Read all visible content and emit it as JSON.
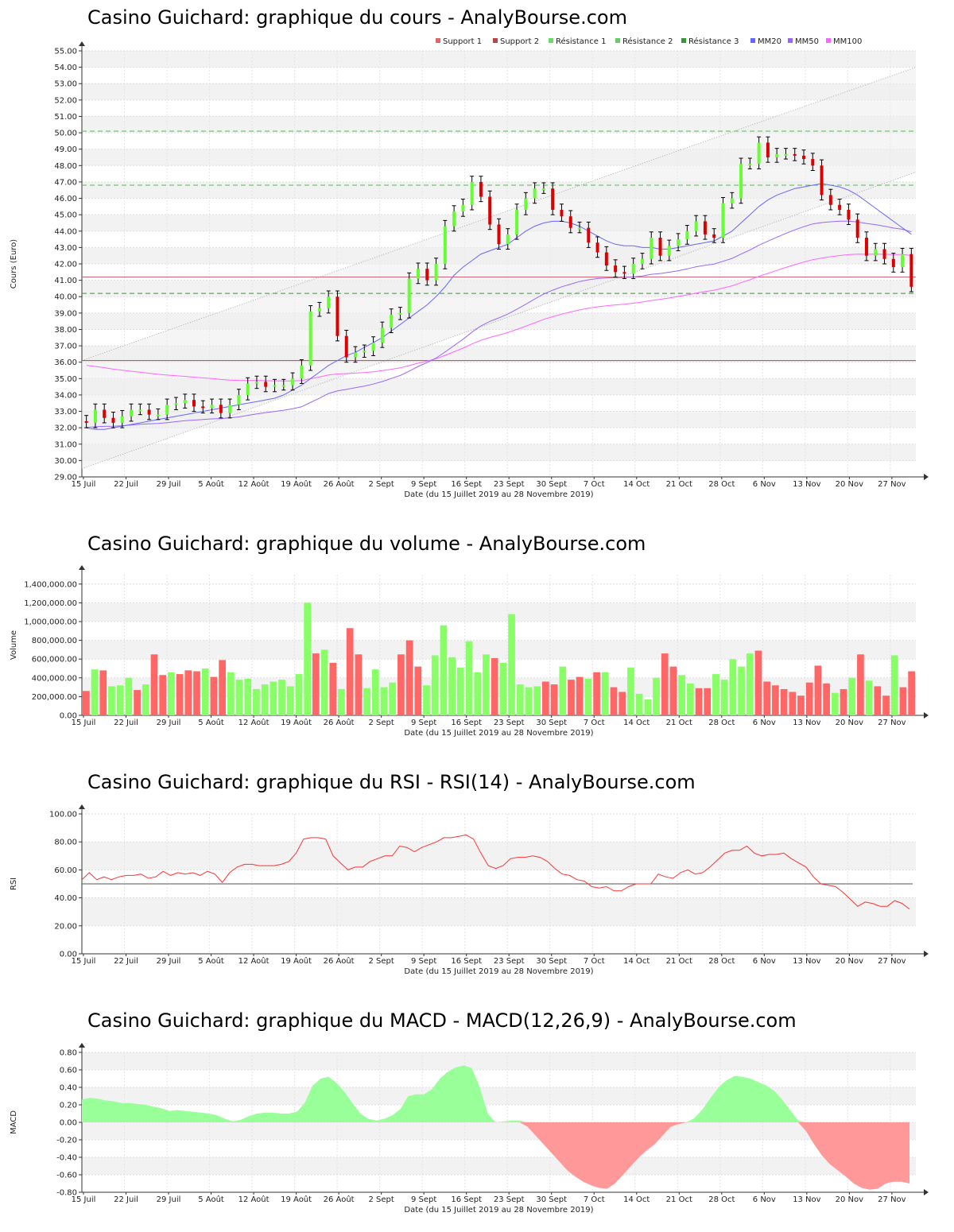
{
  "colors": {
    "up": "#66ff33",
    "down": "#dd0000",
    "vol_up": "#88ff66",
    "vol_down": "#ff6666",
    "mm20": "#6666ff",
    "mm50": "#9966ff",
    "mm100": "#ff66ff",
    "support1": "#dd6666",
    "support2": "#bb4444",
    "resistance1": "#66dd66",
    "resistance2": "#66cc66",
    "resistance3": "#339933",
    "rsi": "#ff3333",
    "macd_pos": "#99ff99",
    "macd_neg": "#ff9999"
  },
  "x_ticks": [
    "15 Juil",
    "22 Juil",
    "29 Juil",
    "5 Août",
    "12 Août",
    "19 Août",
    "26 Août",
    "2 Sept",
    "9 Sept",
    "16 Sept",
    "23 Sept",
    "30 Sept",
    "7 Oct",
    "14 Oct",
    "21 Oct",
    "28 Oct",
    "6 Nov",
    "13 Nov",
    "20 Nov",
    "27 Nov"
  ],
  "xlabel": "Date (du 15 Juillet 2019 au 28 Novembre 2019)",
  "price_panel": {
    "title": "Casino Guichard: graphique du cours - AnalyBourse.com",
    "ylabel": "Cours (Euro)",
    "legend": [
      "Support 1",
      "Support 2",
      "Résistance 1",
      "Résistance 2",
      "Résistance 3",
      "MM20",
      "MM50",
      "MM100"
    ]
  },
  "volume_panel": {
    "title": "Casino Guichard: graphique du volume - AnalyBourse.com",
    "ylabel": "Volume"
  },
  "rsi_panel": {
    "title": "Casino Guichard: graphique du RSI - RSI(14) - AnalyBourse.com",
    "ylabel": "RSI"
  },
  "macd_panel": {
    "title": "Casino Guichard: graphique du MACD - MACD(12,26,9) - AnalyBourse.com",
    "ylabel": "MACD"
  },
  "chart_data": [
    {
      "type": "candlestick",
      "title": "Casino Guichard: graphique du cours - AnalyBourse.com",
      "xlabel": "Date (du 15 Juillet 2019 au 28 Novembre 2019)",
      "ylabel": "Cours (Euro)",
      "ylim": [
        29,
        55
      ],
      "yticks": [
        "29.00",
        "30.00",
        "31.00",
        "32.00",
        "33.00",
        "34.00",
        "35.00",
        "36.00",
        "37.00",
        "38.00",
        "39.00",
        "40.00",
        "41.00",
        "42.00",
        "43.00",
        "44.00",
        "45.00",
        "46.00",
        "47.00",
        "48.00",
        "49.00",
        "50.00",
        "51.00",
        "52.00",
        "53.00",
        "54.00",
        "55.00"
      ],
      "levels": {
        "support1": 41.2,
        "support2": 36.1,
        "resistance1": 50.1,
        "resistance2": 46.8,
        "resistance3": 40.2
      },
      "closes": [
        32.3,
        33.1,
        32.6,
        32.3,
        32.7,
        33.1,
        33.1,
        32.8,
        32.8,
        33.4,
        33.5,
        33.7,
        33.3,
        33.2,
        33.4,
        32.9,
        33.4,
        34.0,
        34.7,
        34.8,
        34.5,
        34.6,
        34.6,
        35.0,
        35.8,
        39.1,
        39.3,
        40.0,
        37.6,
        36.3,
        36.6,
        36.7,
        37.2,
        38.1,
        38.9,
        39.0,
        41.1,
        41.7,
        41.0,
        42.0,
        44.3,
        45.2,
        45.6,
        47.0,
        46.1,
        44.4,
        43.2,
        43.8,
        45.3,
        46.0,
        46.6,
        46.6,
        45.3,
        44.9,
        44.2,
        44.2,
        43.3,
        42.7,
        41.9,
        41.5,
        41.4,
        42.0,
        42.3,
        43.6,
        42.5,
        43.1,
        43.5,
        44.0,
        44.6,
        43.8,
        43.6,
        45.7,
        46.0,
        48.1,
        48.1,
        49.4,
        48.5,
        48.7,
        48.7,
        48.6,
        48.4,
        48.0,
        46.2,
        45.6,
        45.3,
        44.7,
        43.6,
        42.5,
        42.9,
        42.3,
        41.8,
        42.6,
        40.6
      ],
      "mm20": [
        32.0,
        31.9,
        31.9,
        32.0,
        32.1,
        32.2,
        32.3,
        32.4,
        32.5,
        32.6,
        32.7,
        32.8,
        32.9,
        33.0,
        33.1,
        33.2,
        33.3,
        33.4,
        33.5,
        33.6,
        33.7,
        33.8,
        34.0,
        34.3,
        34.6,
        35.0,
        35.4,
        35.8,
        36.1,
        36.4,
        36.6,
        36.9,
        37.2,
        37.5,
        37.9,
        38.3,
        38.7,
        39.1,
        39.5,
        40.0,
        40.6,
        41.3,
        41.8,
        42.2,
        42.6,
        42.8,
        43.0,
        43.2,
        43.6,
        44.0,
        44.3,
        44.5,
        44.6,
        44.6,
        44.5,
        44.3,
        44.0,
        43.7,
        43.4,
        43.2,
        43.1,
        43.1,
        43.0,
        43.0,
        42.9,
        42.9,
        43.0,
        43.1,
        43.2,
        43.3,
        43.4,
        43.7,
        44.0,
        44.5,
        45.0,
        45.5,
        45.9,
        46.2,
        46.4,
        46.6,
        46.7,
        46.8,
        46.9,
        46.8,
        46.7,
        46.5,
        46.2,
        45.8,
        45.4,
        45.0,
        44.6,
        44.2,
        43.8
      ]
    },
    {
      "type": "bar",
      "title": "Casino Guichard: graphique du volume - AnalyBourse.com",
      "xlabel": "Date (du 15 Juillet 2019 au 28 Novembre 2019)",
      "ylabel": "Volume",
      "ylim": [
        0,
        1500000
      ],
      "yticks": [
        "0.00",
        "200,000.00",
        "400,000.00",
        "600,000.00",
        "800,000.00",
        "1,000,000.00",
        "1,200,000.00",
        "1,400,000.00"
      ],
      "values": [
        260000,
        490000,
        480000,
        310000,
        320000,
        400000,
        270000,
        330000,
        650000,
        430000,
        460000,
        440000,
        480000,
        470000,
        500000,
        410000,
        590000,
        460000,
        380000,
        390000,
        280000,
        330000,
        360000,
        380000,
        310000,
        440000,
        1200000,
        660000,
        700000,
        560000,
        280000,
        930000,
        650000,
        290000,
        490000,
        300000,
        350000,
        650000,
        800000,
        520000,
        320000,
        640000,
        960000,
        620000,
        510000,
        790000,
        460000,
        650000,
        610000,
        560000,
        1080000,
        330000,
        300000,
        310000,
        360000,
        330000,
        520000,
        380000,
        410000,
        390000,
        460000,
        460000,
        300000,
        250000,
        510000,
        230000,
        170000,
        400000,
        660000,
        520000,
        430000,
        340000,
        290000,
        290000,
        440000,
        380000,
        600000,
        520000,
        660000,
        690000,
        360000,
        320000,
        280000,
        250000,
        210000,
        350000,
        530000,
        340000,
        240000,
        280000,
        400000,
        650000,
        370000,
        310000,
        210000,
        640000,
        300000,
        470000
      ],
      "up": [
        0,
        1,
        0,
        1,
        1,
        1,
        0,
        1,
        0,
        0,
        1,
        0,
        0,
        0,
        1,
        0,
        0,
        1,
        1,
        1,
        1,
        1,
        1,
        1,
        1,
        1,
        1,
        0,
        1,
        0,
        1,
        0,
        0,
        1,
        1,
        1,
        1,
        0,
        0,
        0,
        1,
        1,
        1,
        1,
        1,
        1,
        1,
        1,
        0,
        1,
        1,
        1,
        1,
        1,
        0,
        0,
        1,
        0,
        0,
        1,
        0,
        1,
        0,
        0,
        1,
        1,
        1,
        1,
        0,
        0,
        1,
        1,
        0,
        0,
        1,
        1,
        1,
        1,
        1,
        0,
        0,
        0,
        0,
        0,
        0,
        0,
        0,
        0,
        1,
        0,
        1,
        0,
        1,
        0,
        0,
        1,
        0,
        0
      ]
    },
    {
      "type": "line",
      "title": "Casino Guichard: graphique du RSI - RSI(14) - AnalyBourse.com",
      "xlabel": "Date (du 15 Juillet 2019 au 28 Novembre 2019)",
      "ylabel": "RSI",
      "ylim": [
        0,
        100
      ],
      "yticks": [
        "0.00",
        "20.00",
        "40.00",
        "60.00",
        "80.00",
        "100.00"
      ],
      "reference_line": 50,
      "values": [
        53,
        58,
        53,
        55,
        53,
        55,
        56,
        56,
        57,
        54,
        55,
        59,
        56,
        58,
        57,
        58,
        56,
        59,
        57,
        51,
        58,
        62,
        64,
        64,
        63,
        63,
        63,
        64,
        66,
        72,
        82,
        83,
        83,
        82,
        70,
        65,
        60,
        62,
        62,
        66,
        68,
        70,
        70,
        77,
        76,
        73,
        76,
        78,
        80,
        83,
        83,
        84,
        85,
        82,
        72,
        63,
        61,
        63,
        68,
        69,
        69,
        70,
        69,
        66,
        61,
        57,
        56,
        53,
        52,
        48,
        47,
        48,
        45,
        45,
        48,
        50,
        50,
        50,
        57,
        55,
        54,
        58,
        60,
        57,
        58,
        62,
        67,
        72,
        74,
        74,
        77,
        72,
        70,
        71,
        71,
        72,
        68,
        65,
        62,
        55,
        50,
        49,
        48,
        44,
        39,
        34,
        37,
        36,
        34,
        34,
        38,
        36,
        32
      ],
      "x_end_index": 109
    },
    {
      "type": "area",
      "title": "Casino Guichard: graphique du MACD - MACD(12,26,9) - AnalyBourse.com",
      "xlabel": "Date (du 15 Juillet 2019 au 28 Novembre 2019)",
      "ylabel": "MACD",
      "ylim": [
        -0.8,
        0.8
      ],
      "yticks": [
        "-0.80",
        "-0.60",
        "-0.40",
        "-0.20",
        "0.00",
        "0.20",
        "0.40",
        "0.60",
        "0.80"
      ],
      "values": [
        0.26,
        0.28,
        0.27,
        0.25,
        0.24,
        0.22,
        0.22,
        0.21,
        0.2,
        0.18,
        0.16,
        0.13,
        0.14,
        0.13,
        0.12,
        0.11,
        0.1,
        0.08,
        0.04,
        0.01,
        0.03,
        0.07,
        0.1,
        0.11,
        0.11,
        0.1,
        0.1,
        0.12,
        0.22,
        0.42,
        0.5,
        0.52,
        0.45,
        0.35,
        0.22,
        0.1,
        0.04,
        0.02,
        0.04,
        0.08,
        0.15,
        0.3,
        0.32,
        0.32,
        0.38,
        0.5,
        0.58,
        0.63,
        0.65,
        0.62,
        0.4,
        0.1,
        0.0,
        0.01,
        0.02,
        0.02,
        -0.05,
        -0.15,
        -0.25,
        -0.35,
        -0.45,
        -0.55,
        -0.62,
        -0.68,
        -0.72,
        -0.75,
        -0.76,
        -0.7,
        -0.6,
        -0.5,
        -0.4,
        -0.32,
        -0.25,
        -0.15,
        -0.05,
        -0.02,
        0.0,
        0.05,
        0.15,
        0.28,
        0.4,
        0.48,
        0.53,
        0.52,
        0.5,
        0.46,
        0.42,
        0.36,
        0.26,
        0.14,
        0.02,
        -0.1,
        -0.25,
        -0.38,
        -0.48,
        -0.55,
        -0.62,
        -0.7,
        -0.75,
        -0.77,
        -0.76,
        -0.7,
        -0.68,
        -0.68,
        -0.7
      ]
    }
  ]
}
